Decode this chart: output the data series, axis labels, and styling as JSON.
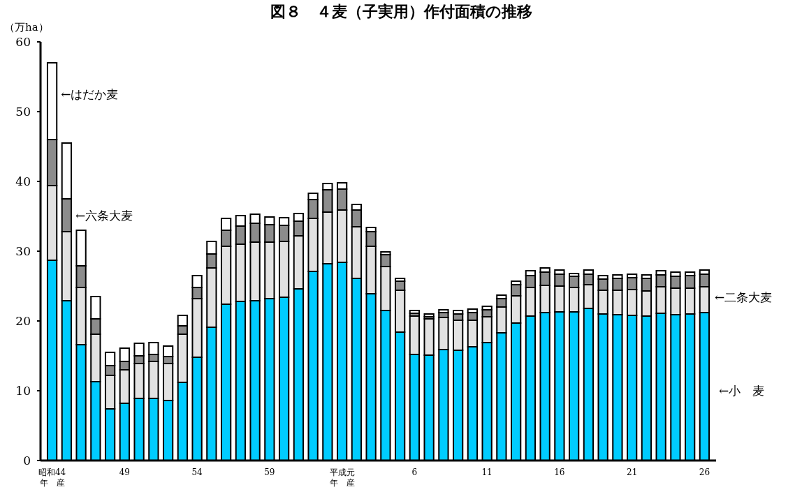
{
  "chart_data": {
    "type": "bar",
    "stacked": true,
    "title": "図８　４麦（子実用）作付面積の推移",
    "ylabel": "（万ha）",
    "categories": [
      "昭和44年　産",
      null,
      null,
      null,
      null,
      "49",
      null,
      null,
      null,
      null,
      "54",
      null,
      null,
      null,
      null,
      "59",
      null,
      null,
      null,
      null,
      "平成元年　産",
      null,
      null,
      null,
      null,
      "6",
      null,
      null,
      null,
      null,
      "11",
      null,
      null,
      null,
      null,
      "16",
      null,
      null,
      null,
      null,
      "21",
      null,
      null,
      null,
      null,
      "26"
    ],
    "ylim": [
      0,
      60
    ],
    "yticks": [
      0,
      10,
      20,
      30,
      40,
      50,
      60
    ],
    "grid": false,
    "legend": false,
    "series": [
      {
        "name": "←小　麦",
        "color": "#00ccff",
        "values": [
          28.7,
          22.9,
          16.6,
          11.3,
          7.4,
          8.2,
          8.9,
          8.9,
          8.6,
          11.2,
          14.8,
          19.1,
          22.4,
          22.8,
          22.9,
          23.2,
          23.4,
          24.6,
          27.1,
          28.2,
          28.4,
          26.1,
          23.9,
          21.5,
          18.4,
          15.2,
          15.1,
          15.9,
          15.8,
          16.3,
          16.9,
          18.3,
          19.7,
          20.7,
          21.2,
          21.3,
          21.3,
          21.8,
          21.0,
          20.9,
          20.8,
          20.7,
          21.1,
          20.9,
          21.0,
          21.2
        ]
      },
      {
        "name": "←二条大麦",
        "color": "#e2e2e2",
        "values": [
          10.7,
          9.9,
          8.2,
          6.8,
          4.8,
          4.8,
          5.0,
          5.3,
          5.3,
          6.9,
          8.4,
          8.5,
          8.3,
          8.2,
          8.4,
          8.1,
          8.0,
          7.6,
          7.6,
          7.4,
          7.5,
          7.4,
          6.8,
          6.3,
          6.0,
          5.5,
          5.2,
          4.6,
          4.3,
          3.8,
          3.7,
          3.7,
          3.9,
          4.1,
          3.9,
          3.7,
          3.5,
          3.4,
          3.4,
          3.5,
          3.7,
          3.6,
          3.8,
          3.8,
          3.7,
          3.7
        ]
      },
      {
        "name": "←六条大麦",
        "color": "#8c8c8c",
        "values": [
          6.6,
          4.7,
          3.1,
          2.2,
          1.4,
          1.2,
          1.1,
          1.0,
          1.0,
          1.2,
          1.6,
          2.0,
          2.3,
          2.6,
          2.7,
          2.5,
          2.3,
          2.1,
          2.7,
          3.2,
          3.0,
          2.4,
          2.1,
          1.7,
          1.3,
          0.4,
          0.3,
          0.7,
          0.9,
          1.1,
          1.0,
          1.2,
          1.6,
          1.7,
          1.9,
          1.7,
          1.6,
          1.5,
          1.6,
          1.7,
          1.7,
          1.8,
          1.7,
          1.7,
          1.8,
          1.8
        ]
      },
      {
        "name": "←はだか麦",
        "color": "#ffffff",
        "values": [
          11.0,
          8.0,
          5.1,
          3.2,
          1.9,
          1.9,
          1.8,
          1.7,
          1.5,
          1.5,
          1.7,
          1.8,
          1.7,
          1.5,
          1.3,
          1.1,
          1.1,
          1.1,
          0.9,
          0.9,
          0.9,
          0.8,
          0.6,
          0.4,
          0.4,
          0.4,
          0.4,
          0.4,
          0.5,
          0.5,
          0.5,
          0.5,
          0.5,
          0.7,
          0.6,
          0.6,
          0.4,
          0.6,
          0.5,
          0.5,
          0.5,
          0.5,
          0.6,
          0.6,
          0.5,
          0.6
        ]
      }
    ]
  }
}
